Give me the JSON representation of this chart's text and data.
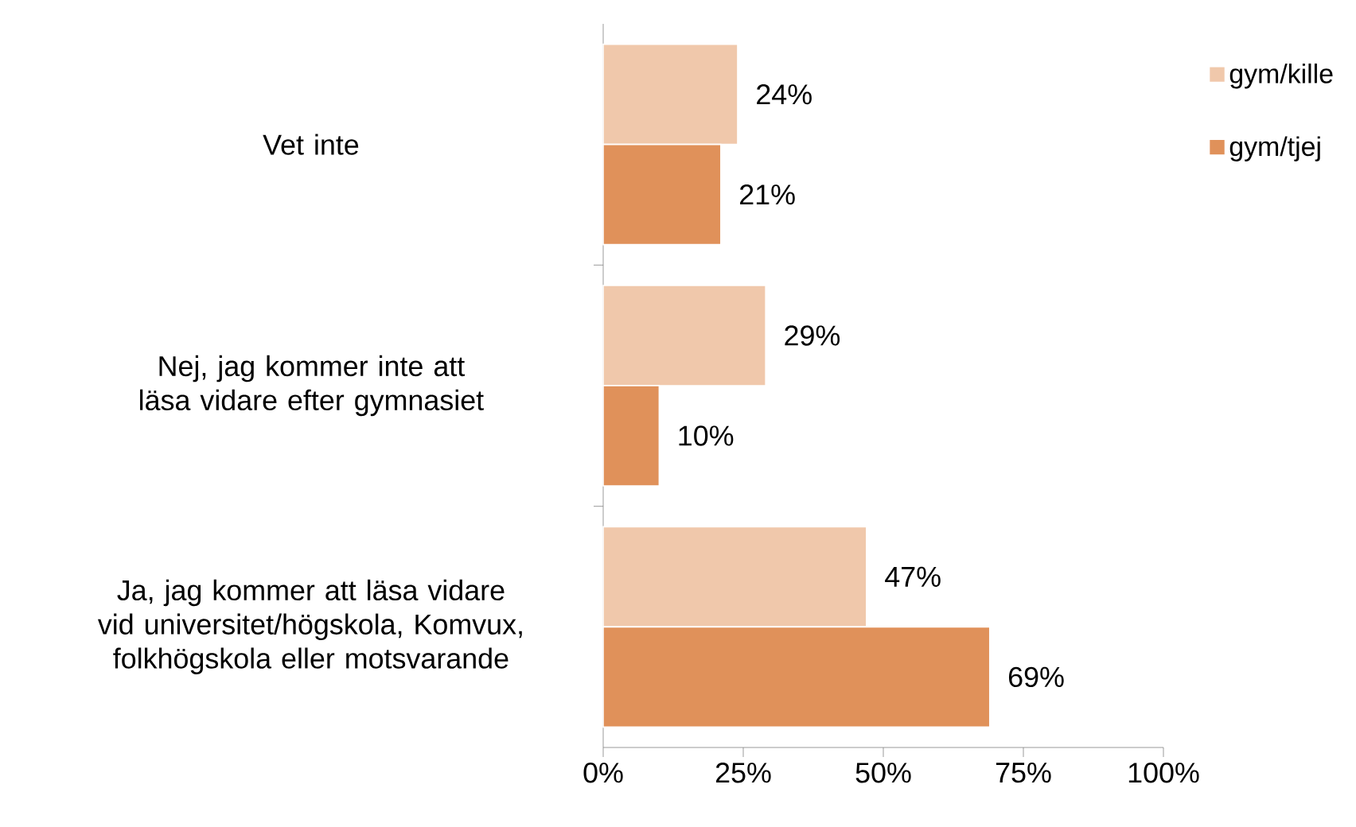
{
  "chart_data": {
    "type": "bar",
    "orientation": "horizontal",
    "categories": [
      "Vet inte",
      "Nej, jag kommer inte att läsa vidare efter gymnasiet",
      "Ja, jag kommer att läsa vidare vid universitet/högskola, Komvux, folkhögskola eller motsvarande"
    ],
    "series": [
      {
        "name": "gym/kille",
        "color": "#f0c8ab",
        "values": [
          24,
          29,
          47
        ],
        "value_labels": [
          "24%",
          "29%",
          "47%"
        ]
      },
      {
        "name": "gym/tjej",
        "color": "#e0915a",
        "values": [
          21,
          10,
          69
        ],
        "value_labels": [
          "21%",
          "10%",
          "69%"
        ]
      }
    ],
    "xlim": [
      0,
      100
    ],
    "xticks": [
      {
        "value": 0,
        "label": "0%"
      },
      {
        "value": 25,
        "label": "25%"
      },
      {
        "value": 50,
        "label": "50%"
      },
      {
        "value": 75,
        "label": "75%"
      },
      {
        "value": 100,
        "label": "100%"
      }
    ],
    "grid": false,
    "legend": "top right"
  }
}
